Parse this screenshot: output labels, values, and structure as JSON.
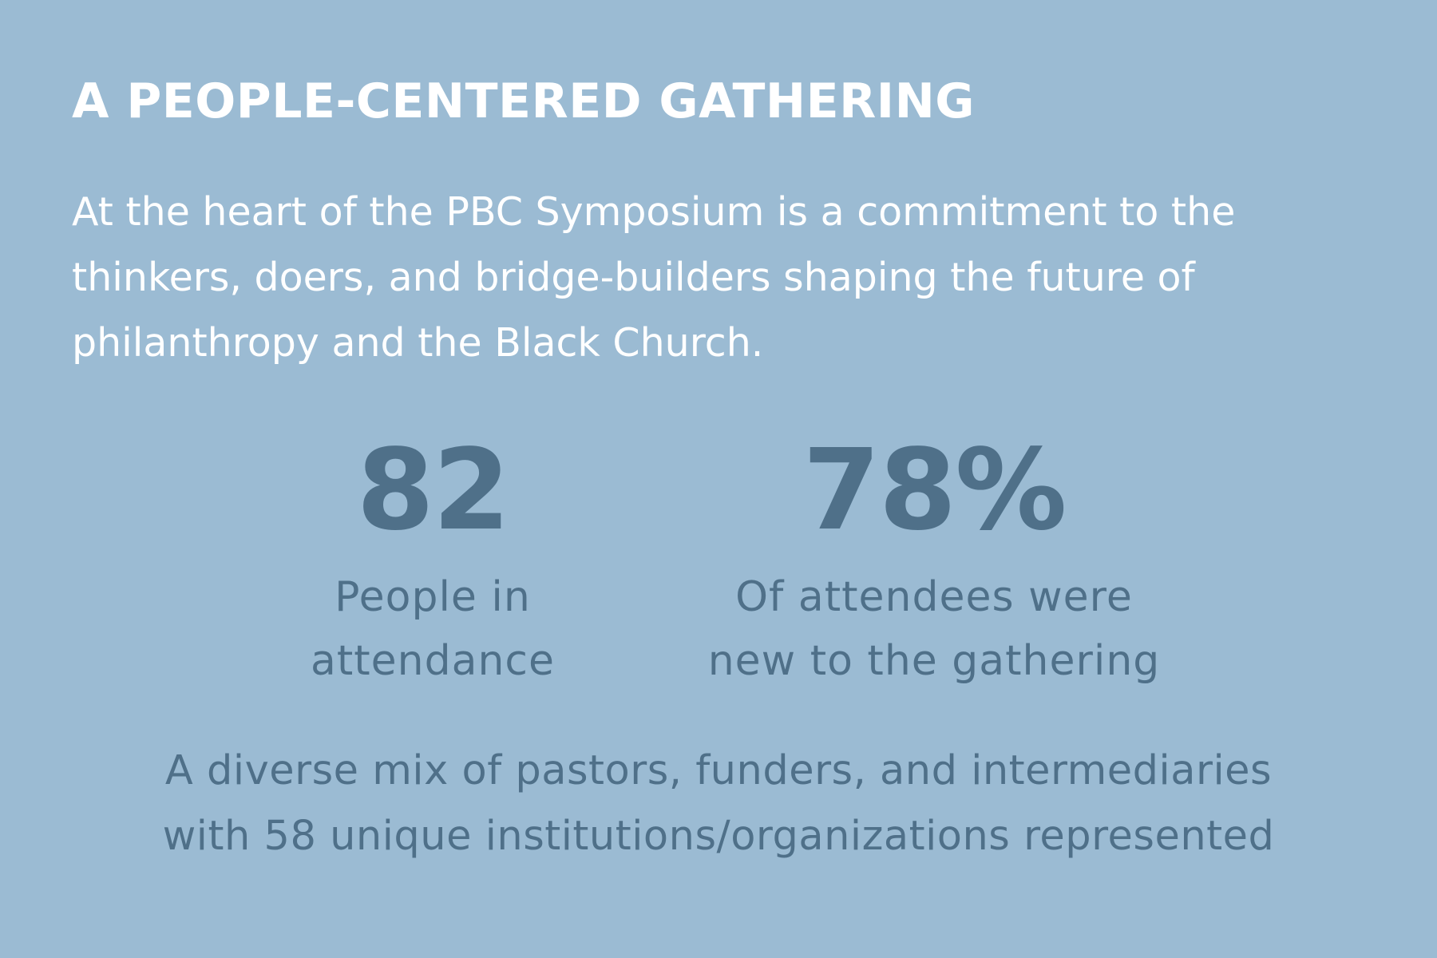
{
  "heading": "A PEOPLE-CENTERED GATHERING",
  "intro": {
    "lines": [
      "At the heart of the PBC Symposium is a commitment to the",
      "thinkers, doers, and bridge-builders shaping the future of",
      "philanthropy and the Black Church."
    ]
  },
  "stats": [
    {
      "number": "82",
      "caption_lines": [
        "People in",
        "attendance"
      ]
    },
    {
      "number": "78%",
      "caption_lines": [
        "Of attendees were",
        "new to the gathering"
      ]
    }
  ],
  "summary": {
    "lines": [
      "A diverse mix of pastors, funders, and intermediaries",
      "with 58 unique institutions/organizations represented"
    ]
  },
  "colors": {
    "background": "#9bbbd3",
    "heading_text": "#ffffff",
    "stat_text": "#4f7089"
  }
}
